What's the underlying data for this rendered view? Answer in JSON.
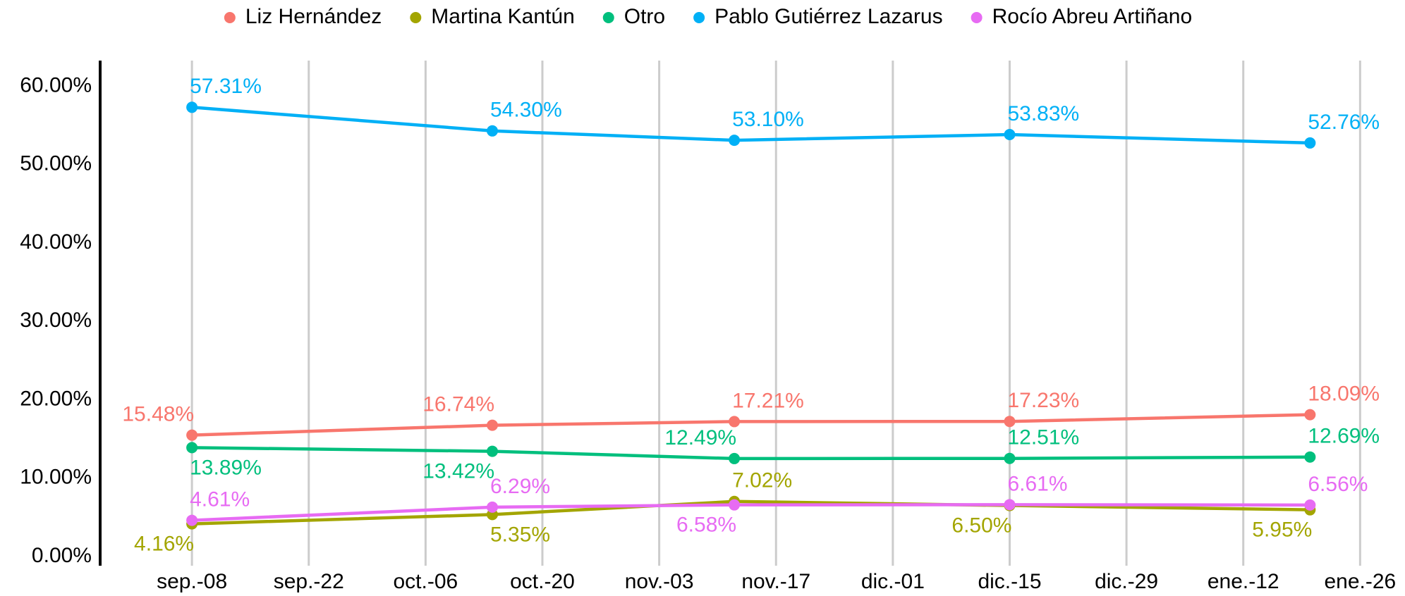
{
  "chart_data": {
    "type": "line",
    "x": [
      0,
      36,
      65,
      98,
      134
    ],
    "xlim": [
      -11,
      142
    ],
    "xticks": [
      {
        "value": 0,
        "label": "sep.-08"
      },
      {
        "value": 14,
        "label": "sep.-22"
      },
      {
        "value": 28,
        "label": "oct.-06"
      },
      {
        "value": 42,
        "label": "oct.-20"
      },
      {
        "value": 56,
        "label": "nov.-03"
      },
      {
        "value": 70,
        "label": "nov.-17"
      },
      {
        "value": 84,
        "label": "dic.-01"
      },
      {
        "value": 98,
        "label": "dic.-15"
      },
      {
        "value": 112,
        "label": "dic.-29"
      },
      {
        "value": 126,
        "label": "ene.-12"
      },
      {
        "value": 140,
        "label": "ene.-26"
      }
    ],
    "ylim": [
      -1,
      63
    ],
    "yticks": [
      {
        "value": 0,
        "label": "0.00%"
      },
      {
        "value": 10,
        "label": "10.00%"
      },
      {
        "value": 20,
        "label": "20.00%"
      },
      {
        "value": 30,
        "label": "30.00%"
      },
      {
        "value": 40,
        "label": "40.00%"
      },
      {
        "value": 50,
        "label": "50.00%"
      },
      {
        "value": 60,
        "label": "60.00%"
      }
    ],
    "grid": true,
    "legend": "top",
    "series": [
      {
        "name": "Liz Hernández",
        "color": "#F8766D",
        "values": [
          15.48,
          16.74,
          17.21,
          17.23,
          18.09
        ],
        "value_labels": [
          "15.48%",
          "16.74%",
          "17.21%",
          "17.23%",
          "18.09%"
        ]
      },
      {
        "name": "Martina Kantún",
        "color": "#A3A500",
        "values": [
          4.16,
          5.35,
          7.02,
          6.5,
          5.95
        ],
        "value_labels": [
          "4.16%",
          "5.35%",
          "7.02%",
          "6.50%",
          "5.95%"
        ]
      },
      {
        "name": "Otro",
        "color": "#00BF7D",
        "values": [
          13.89,
          13.42,
          12.49,
          12.51,
          12.69
        ],
        "value_labels": [
          "13.89%",
          "13.42%",
          "12.49%",
          "12.51%",
          "12.69%"
        ]
      },
      {
        "name": "Pablo Gutiérrez Lazarus",
        "color": "#00B0F6",
        "values": [
          57.31,
          54.3,
          53.1,
          53.83,
          52.76
        ],
        "value_labels": [
          "57.31%",
          "54.30%",
          "53.10%",
          "53.83%",
          "52.76%"
        ]
      },
      {
        "name": "Rocío Abreu Artiñano",
        "color": "#E76BF3",
        "values": [
          4.61,
          6.29,
          6.58,
          6.61,
          6.56
        ],
        "value_labels": [
          "4.61%",
          "6.29%",
          "6.58%",
          "6.61%",
          "6.56%"
        ]
      }
    ]
  }
}
